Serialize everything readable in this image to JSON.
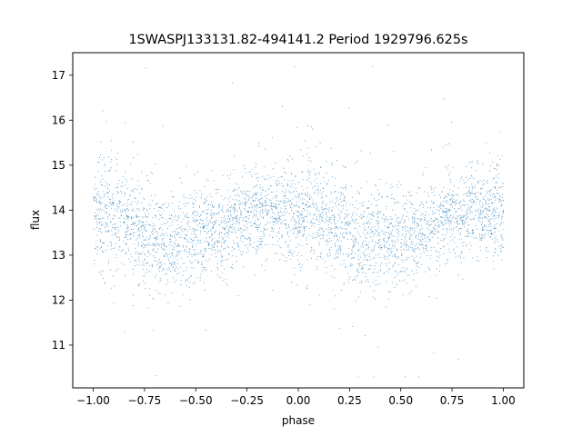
{
  "chart_data": {
    "type": "scatter",
    "title": "1SWASPJ133131.82-494141.2 Period 1929796.625s",
    "xlabel": "phase",
    "ylabel": "flux",
    "xlim": [
      -1.1,
      1.1
    ],
    "ylim": [
      10.05,
      17.5
    ],
    "xticks": [
      -1.0,
      -0.75,
      -0.5,
      -0.25,
      0.0,
      0.25,
      0.5,
      0.75,
      1.0
    ],
    "xtick_labels": [
      "−1.00",
      "−0.75",
      "−0.50",
      "−0.25",
      "0.00",
      "0.25",
      "0.50",
      "0.75",
      "1.00"
    ],
    "yticks": [
      11,
      12,
      13,
      14,
      15,
      16,
      17
    ],
    "ytick_labels": [
      "11",
      "12",
      "13",
      "14",
      "15",
      "16",
      "17"
    ],
    "grid": false,
    "series": [
      {
        "color": "#1f77b4",
        "x_range": [
          -1.0,
          1.0
        ],
        "profile": {
          "phase": [
            0.0,
            0.05,
            0.1,
            0.15,
            0.2,
            0.25,
            0.3,
            0.35,
            0.4,
            0.45,
            0.5,
            0.55,
            0.6,
            0.65,
            0.7,
            0.75,
            0.8,
            0.85,
            0.9,
            0.95,
            1.0
          ],
          "median_flux": [
            13.9,
            14.0,
            13.85,
            13.75,
            13.6,
            13.45,
            13.35,
            13.3,
            13.35,
            13.4,
            13.45,
            13.5,
            13.55,
            13.6,
            13.8,
            13.9,
            14.0,
            13.95,
            13.9,
            13.95,
            13.9
          ],
          "spread": [
            0.55,
            0.7,
            0.6,
            0.55,
            0.55,
            0.6,
            0.6,
            0.55,
            0.55,
            0.5,
            0.5,
            0.5,
            0.5,
            0.5,
            0.45,
            0.45,
            0.45,
            0.45,
            0.45,
            0.55,
            0.55
          ]
        }
      }
    ]
  }
}
